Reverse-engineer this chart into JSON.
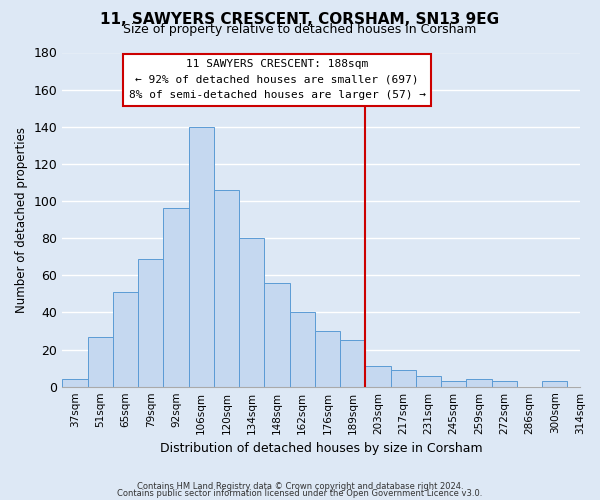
{
  "title": "11, SAWYERS CRESCENT, CORSHAM, SN13 9EG",
  "subtitle": "Size of property relative to detached houses in Corsham",
  "xlabel": "Distribution of detached houses by size in Corsham",
  "ylabel": "Number of detached properties",
  "bar_labels": [
    "37sqm",
    "51sqm",
    "65sqm",
    "79sqm",
    "92sqm",
    "106sqm",
    "120sqm",
    "134sqm",
    "148sqm",
    "162sqm",
    "176sqm",
    "189sqm",
    "203sqm",
    "217sqm",
    "231sqm",
    "245sqm",
    "259sqm",
    "272sqm",
    "286sqm",
    "300sqm"
  ],
  "bar_values": [
    4,
    27,
    51,
    69,
    96,
    140,
    106,
    80,
    56,
    40,
    30,
    25,
    11,
    9,
    6,
    3,
    4,
    3,
    0,
    3
  ],
  "extra_tick_label": "314sqm",
  "bar_color": "#c5d8f0",
  "bar_edge_color": "#5b9bd5",
  "vline_x": 11.5,
  "vline_color": "#cc0000",
  "ylim": [
    0,
    180
  ],
  "yticks": [
    0,
    20,
    40,
    60,
    80,
    100,
    120,
    140,
    160,
    180
  ],
  "annotation_title": "11 SAWYERS CRESCENT: 188sqm",
  "annotation_line1": "← 92% of detached houses are smaller (697)",
  "annotation_line2": "8% of semi-detached houses are larger (57) →",
  "annotation_box_color": "#ffffff",
  "annotation_edge_color": "#cc0000",
  "footer_line1": "Contains HM Land Registry data © Crown copyright and database right 2024.",
  "footer_line2": "Contains public sector information licensed under the Open Government Licence v3.0.",
  "background_color": "#dde8f5",
  "plot_background": "#dde8f5"
}
